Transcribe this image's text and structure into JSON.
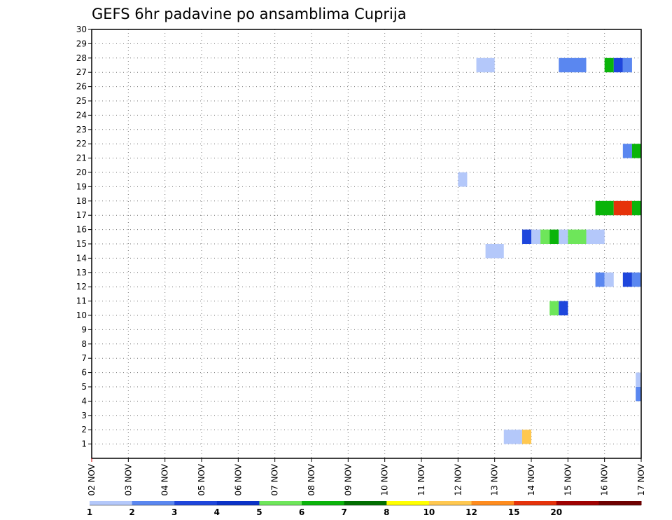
{
  "chart_data": {
    "type": "heatmap",
    "title": "GEFS 6hr padavine po ansamblima Cuprija",
    "x_tick_labels": [
      "02 NOV",
      "03 NOV",
      "04 NOV",
      "05 NOV",
      "06 NOV",
      "07 NOV",
      "08 NOV",
      "09 NOV",
      "10 NOV",
      "11 NOV",
      "12 NOV",
      "13 NOV",
      "14 NOV",
      "15 NOV",
      "16 NOV",
      "17 NOV"
    ],
    "y_tick_labels": [
      "1",
      "2",
      "3",
      "4",
      "5",
      "6",
      "7",
      "8",
      "9",
      "10",
      "11",
      "12",
      "13",
      "14",
      "15",
      "16",
      "17",
      "18",
      "19",
      "20",
      "21",
      "22",
      "23",
      "24",
      "25",
      "26",
      "27",
      "28",
      "29",
      "30"
    ],
    "xlim_days": [
      2,
      17
    ],
    "ylim": [
      0,
      30
    ],
    "grid": true,
    "units_note": "x = day of November; y = ensemble member (boundary lines)",
    "colorbar": {
      "labels": [
        "1",
        "2",
        "3",
        "4",
        "5",
        "6",
        "7",
        "8",
        "10",
        "12",
        "15",
        "20"
      ],
      "colors": [
        "#b4c8fa",
        "#5a87f0",
        "#1e46dc",
        "#0a32c8",
        "#6ee65a",
        "#0ab40a",
        "#006e00",
        "#ffff00",
        "#ffc850",
        "#ff8c1e",
        "#e6320a",
        "#a00000",
        "#6e0000"
      ]
    },
    "cells": [
      {
        "x0": 12.5,
        "x1": 13.0,
        "y0": 27,
        "y1": 28,
        "color": "#b4c8fa"
      },
      {
        "x0": 14.75,
        "x1": 15.5,
        "y0": 27,
        "y1": 28,
        "color": "#5a87f0"
      },
      {
        "x0": 16.0,
        "x1": 16.25,
        "y0": 27,
        "y1": 28,
        "color": "#0ab40a"
      },
      {
        "x0": 16.25,
        "x1": 16.5,
        "y0": 27,
        "y1": 28,
        "color": "#1e46dc"
      },
      {
        "x0": 16.5,
        "x1": 16.75,
        "y0": 27,
        "y1": 28,
        "color": "#5a87f0"
      },
      {
        "x0": 16.5,
        "x1": 16.75,
        "y0": 21,
        "y1": 22,
        "color": "#5a87f0"
      },
      {
        "x0": 16.75,
        "x1": 17.0,
        "y0": 21,
        "y1": 22,
        "color": "#0ab40a"
      },
      {
        "x0": 12.0,
        "x1": 12.25,
        "y0": 19,
        "y1": 20,
        "color": "#b4c8fa"
      },
      {
        "x0": 15.75,
        "x1": 16.25,
        "y0": 17,
        "y1": 18,
        "color": "#0ab40a"
      },
      {
        "x0": 16.25,
        "x1": 16.75,
        "y0": 17,
        "y1": 18,
        "color": "#e6320a"
      },
      {
        "x0": 16.75,
        "x1": 17.0,
        "y0": 17,
        "y1": 18,
        "color": "#0ab40a"
      },
      {
        "x0": 13.75,
        "x1": 14.0,
        "y0": 15,
        "y1": 16,
        "color": "#1e46dc"
      },
      {
        "x0": 14.0,
        "x1": 14.25,
        "y0": 15,
        "y1": 16,
        "color": "#b4c8fa"
      },
      {
        "x0": 14.25,
        "x1": 14.5,
        "y0": 15,
        "y1": 16,
        "color": "#6ee65a"
      },
      {
        "x0": 14.5,
        "x1": 14.75,
        "y0": 15,
        "y1": 16,
        "color": "#0ab40a"
      },
      {
        "x0": 14.75,
        "x1": 15.0,
        "y0": 15,
        "y1": 16,
        "color": "#b4c8fa"
      },
      {
        "x0": 15.0,
        "x1": 15.5,
        "y0": 15,
        "y1": 16,
        "color": "#6ee65a"
      },
      {
        "x0": 15.5,
        "x1": 16.0,
        "y0": 15,
        "y1": 16,
        "color": "#b4c8fa"
      },
      {
        "x0": 12.75,
        "x1": 13.25,
        "y0": 14,
        "y1": 15,
        "color": "#b4c8fa"
      },
      {
        "x0": 15.75,
        "x1": 16.0,
        "y0": 12,
        "y1": 13,
        "color": "#5a87f0"
      },
      {
        "x0": 16.0,
        "x1": 16.25,
        "y0": 12,
        "y1": 13,
        "color": "#b4c8fa"
      },
      {
        "x0": 16.5,
        "x1": 16.75,
        "y0": 12,
        "y1": 13,
        "color": "#1e46dc"
      },
      {
        "x0": 16.75,
        "x1": 17.0,
        "y0": 12,
        "y1": 13,
        "color": "#5a87f0"
      },
      {
        "x0": 14.5,
        "x1": 14.75,
        "y0": 10,
        "y1": 11,
        "color": "#6ee65a"
      },
      {
        "x0": 14.75,
        "x1": 15.0,
        "y0": 10,
        "y1": 11,
        "color": "#1e46dc"
      },
      {
        "x0": 16.85,
        "x1": 17.0,
        "y0": 5,
        "y1": 6,
        "color": "#b4c8fa"
      },
      {
        "x0": 16.85,
        "x1": 17.0,
        "y0": 4,
        "y1": 5,
        "color": "#5a87f0"
      },
      {
        "x0": 13.25,
        "x1": 13.75,
        "y0": 1,
        "y1": 2,
        "color": "#b4c8fa"
      },
      {
        "x0": 13.75,
        "x1": 14.0,
        "y0": 1,
        "y1": 2,
        "color": "#ffc850"
      }
    ]
  }
}
